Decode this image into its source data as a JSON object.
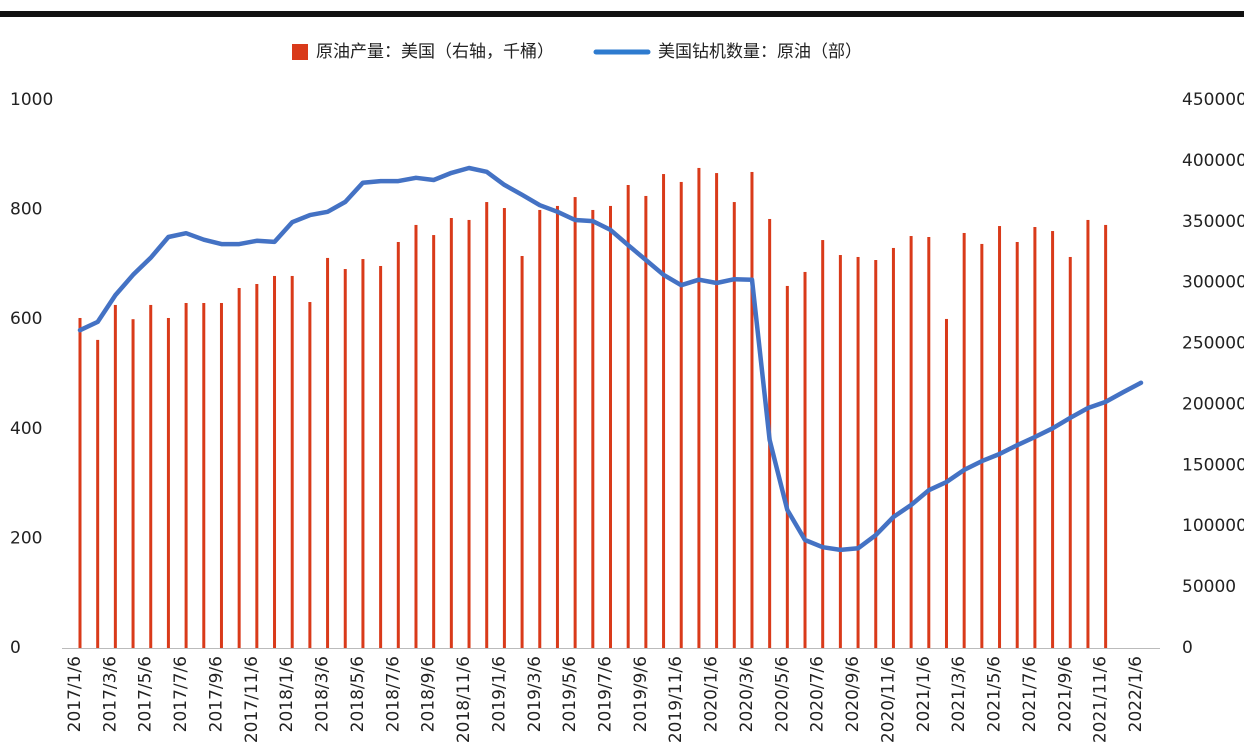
{
  "chart_data": {
    "type": "bar_line",
    "categories": [
      "2017/1/6",
      null,
      "2017/3/6",
      null,
      "2017/5/6",
      null,
      "2017/7/6",
      null,
      "2017/9/6",
      null,
      "2017/11/6",
      null,
      "2018/1/6",
      null,
      "2018/3/6",
      null,
      "2018/5/6",
      null,
      "2018/7/6",
      null,
      "2018/9/6",
      null,
      "2018/11/6",
      null,
      "2019/1/6",
      null,
      "2019/3/6",
      null,
      "2019/5/6",
      null,
      "2019/7/6",
      null,
      "2019/9/6",
      null,
      "2019/11/6",
      null,
      "2020/1/6",
      null,
      "2020/3/6",
      null,
      "2020/5/6",
      null,
      "2020/7/6",
      null,
      "2020/9/6",
      null,
      "2020/11/6",
      null,
      "2021/1/6",
      null,
      "2021/3/6",
      null,
      "2021/5/6",
      null,
      "2021/7/6",
      null,
      "2021/9/6",
      null,
      "2021/11/6",
      null,
      "2022/1/6"
    ],
    "series": [
      {
        "name": "原油产量：美国（右轴，千桶）",
        "type": "bar",
        "axis": "y2",
        "color": "#d93a1a",
        "values": [
          271000,
          253000,
          281700,
          270000,
          281700,
          271000,
          283300,
          283300,
          283300,
          295600,
          298900,
          305500,
          305500,
          284100,
          320300,
          311200,
          319400,
          313700,
          333400,
          347400,
          339100,
          353100,
          351500,
          366200,
          361300,
          321900,
          359700,
          363000,
          370300,
          359700,
          363000,
          380200,
          371200,
          389200,
          382700,
          394200,
          390000,
          366200,
          390900,
          352300,
          297300,
          308800,
          335000,
          322700,
          321100,
          318600,
          328500,
          338300,
          337500,
          270200,
          340800,
          331800,
          346500,
          333400,
          345700,
          342400,
          321100,
          351500,
          347400,
          null,
          null
        ]
      },
      {
        "name": "美国钻机数量：原油（部）",
        "type": "line",
        "axis": "y",
        "color": "#4472c4",
        "values": [
          580,
          595,
          644,
          681,
          712,
          750,
          757,
          745,
          737,
          737,
          743,
          741,
          777,
          790,
          796,
          814,
          849,
          852,
          852,
          858,
          854,
          867,
          876,
          869,
          845,
          827,
          808,
          796,
          781,
          779,
          763,
          735,
          708,
          681,
          662,
          672,
          666,
          673,
          672,
          380,
          252,
          197,
          184,
          179,
          182,
          206,
          239,
          261,
          288,
          303,
          325,
          341,
          354,
          370,
          385,
          401,
          420,
          438,
          449,
          467,
          484
        ]
      }
    ],
    "ylim": [
      0,
      1000
    ],
    "yticks": [
      0,
      200,
      400,
      600,
      800,
      1000
    ],
    "y2lim": [
      0,
      450000
    ],
    "y2ticks": [
      0,
      50000,
      100000,
      150000,
      200000,
      250000,
      300000,
      350000,
      400000,
      450000
    ],
    "legend": "top"
  }
}
